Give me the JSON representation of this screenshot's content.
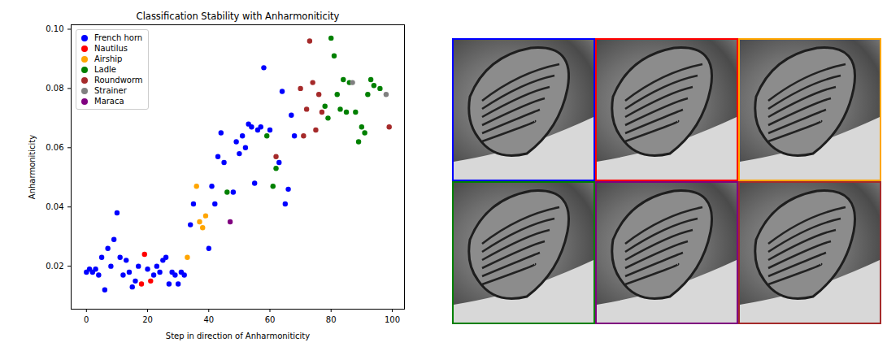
{
  "chart_data": {
    "type": "scatter",
    "title": "Classification Stability with Anharmoniticity",
    "x_label": "Step in direction of Anharmoniticity",
    "y_label": "Anharmoniticity",
    "xlim": [
      -5,
      104
    ],
    "ylim": [
      0.0055,
      0.1015
    ],
    "xticks": [
      0,
      20,
      40,
      60,
      80,
      100
    ],
    "yticks": [
      {
        "value": 0.02,
        "label": "0.02"
      },
      {
        "value": 0.04,
        "label": "0.04"
      },
      {
        "value": 0.06,
        "label": "0.06"
      },
      {
        "value": 0.08,
        "label": "0.08"
      },
      {
        "value": 0.1,
        "label": "0.10"
      }
    ],
    "legend": "upper left",
    "grid": false,
    "marker": "circle",
    "series": [
      {
        "name": "French horn",
        "color": "#0000ff",
        "x": [
          0,
          1,
          2,
          3,
          4,
          5,
          6,
          7,
          8,
          9,
          10,
          11,
          12,
          13,
          14,
          15,
          16,
          17,
          20,
          22,
          23,
          24,
          25,
          26,
          27,
          28,
          29,
          30,
          31,
          32,
          34,
          35,
          40,
          41,
          42,
          43,
          44,
          45,
          48,
          49,
          50,
          51,
          52,
          53,
          54,
          55,
          56,
          57,
          58,
          60,
          63,
          64,
          65,
          66,
          67,
          68
        ],
        "values": [
          0.018,
          0.019,
          0.018,
          0.019,
          0.017,
          0.023,
          0.012,
          0.026,
          0.02,
          0.029,
          0.038,
          0.023,
          0.017,
          0.022,
          0.018,
          0.013,
          0.015,
          0.02,
          0.019,
          0.017,
          0.02,
          0.018,
          0.022,
          0.023,
          0.014,
          0.018,
          0.017,
          0.014,
          0.018,
          0.017,
          0.034,
          0.041,
          0.026,
          0.047,
          0.041,
          0.057,
          0.065,
          0.055,
          0.045,
          0.062,
          0.058,
          0.064,
          0.06,
          0.068,
          0.067,
          0.048,
          0.066,
          0.067,
          0.087,
          0.066,
          0.055,
          0.079,
          0.041,
          0.046,
          0.071,
          0.064
        ]
      },
      {
        "name": "Nautilus",
        "color": "#ff0000",
        "x": [
          18,
          19,
          21
        ],
        "values": [
          0.014,
          0.024,
          0.015
        ]
      },
      {
        "name": "Airship",
        "color": "#ffa500",
        "x": [
          33,
          36,
          37,
          38,
          39
        ],
        "values": [
          0.023,
          0.047,
          0.035,
          0.033,
          0.037
        ]
      },
      {
        "name": "Ladle",
        "color": "#008000",
        "x": [
          46,
          59,
          61,
          62,
          78,
          79,
          80,
          81,
          82,
          83,
          84,
          85,
          86,
          88,
          89,
          90,
          91,
          92,
          93,
          94,
          96
        ],
        "values": [
          0.045,
          0.064,
          0.047,
          0.053,
          0.074,
          0.07,
          0.097,
          0.091,
          0.078,
          0.073,
          0.083,
          0.072,
          0.082,
          0.072,
          0.062,
          0.067,
          0.065,
          0.078,
          0.083,
          0.081,
          0.08
        ]
      },
      {
        "name": "Roundworm",
        "color": "#a52a2a",
        "x": [
          62,
          70,
          71,
          72,
          73,
          74,
          75,
          76,
          77,
          99
        ],
        "values": [
          0.057,
          0.08,
          0.064,
          0.073,
          0.096,
          0.082,
          0.066,
          0.078,
          0.072,
          0.067
        ]
      },
      {
        "name": "Strainer",
        "color": "#808080",
        "x": [
          87,
          98
        ],
        "values": [
          0.082,
          0.078
        ]
      },
      {
        "name": "Maraca",
        "color": "#800080",
        "x": [
          47
        ],
        "values": [
          0.035
        ]
      }
    ]
  },
  "image_borders": [
    "#0000ff",
    "#ff0000",
    "#ffa500",
    "#008000",
    "#800080",
    "#a52a2a"
  ]
}
